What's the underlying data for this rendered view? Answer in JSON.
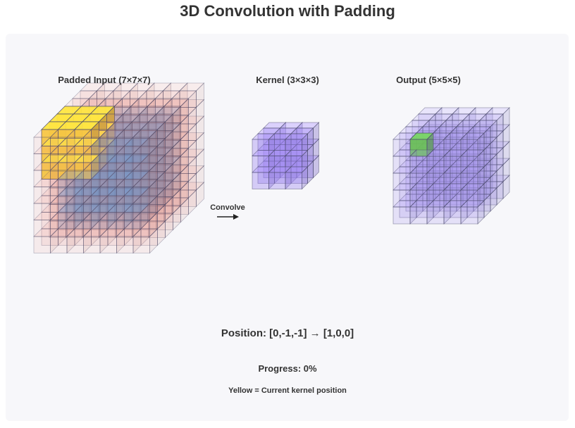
{
  "title": "3D Convolution with Padding",
  "input_label": "Padded Input (7×7×7)",
  "kernel_label": "Kernel (3×3×3)",
  "output_label": "Output (5×5×5)",
  "arrow_label": "Convolve",
  "position_text": "Position: [0,-1,-1] → [1,0,0]",
  "progress_text": "Progress: 0%",
  "legend_text": "Yellow = Current kernel position",
  "progress": 0,
  "input_size": 7,
  "padding": 1,
  "kernel_size": 3,
  "output_size": 5,
  "kernel_position": [
    0,
    -1,
    -1
  ],
  "output_position": [
    1,
    0,
    0
  ],
  "colors": {
    "padding": "#e58a80",
    "input": "#6f96c8",
    "kernel_highlight": "#f5cd3c",
    "kernel": "#9b84f0",
    "output": "#a393ef",
    "output_highlight": "#6cbf5a"
  }
}
